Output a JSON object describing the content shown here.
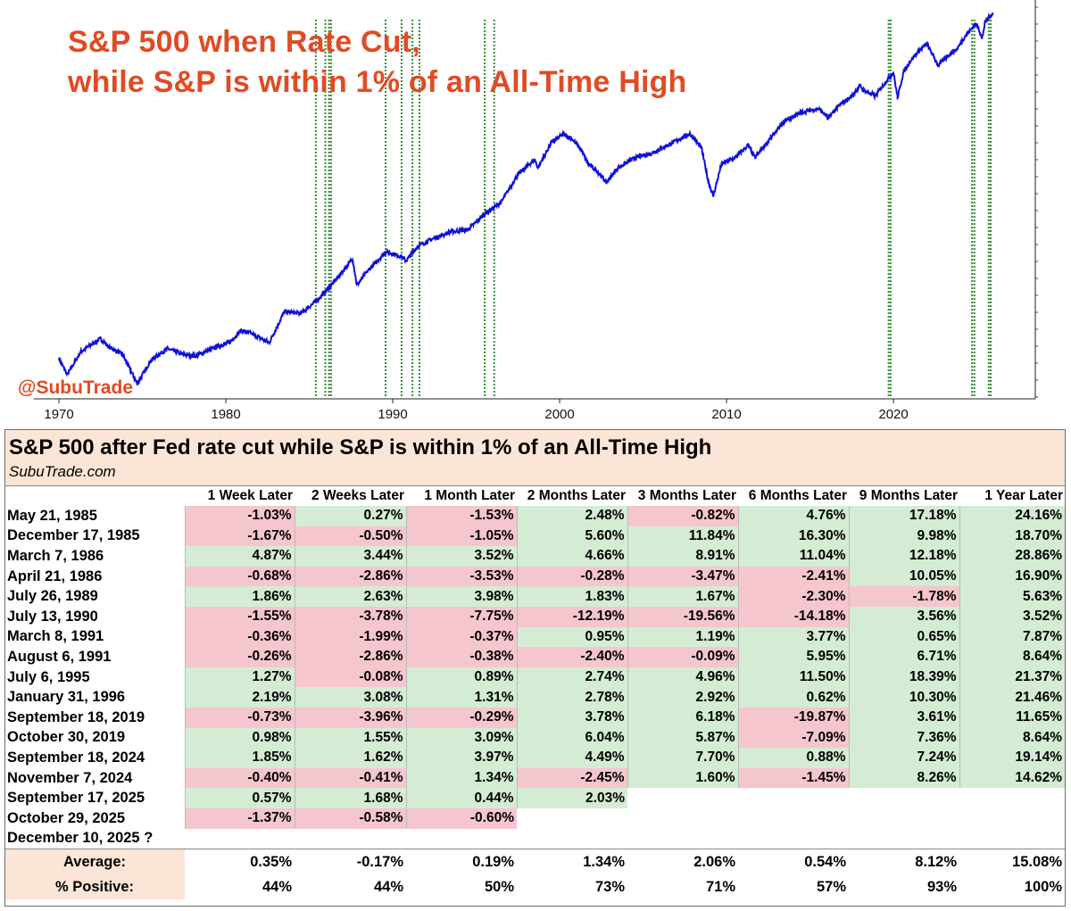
{
  "chart_data": {
    "type": "line",
    "title": [
      "S&P 500 when Rate Cut,",
      "while S&P is within 1% of an All-Time High"
    ],
    "watermark": "@SubuTrade",
    "x_ticks": [
      "1970",
      "1980",
      "1990",
      "2000",
      "2010",
      "2020"
    ],
    "xlim": [
      1968.5,
      2028.5
    ],
    "log_scale": true,
    "grid": false,
    "line_color": "#1010d8",
    "marker_color": "#3a8a3a",
    "series": [
      {
        "x": [
          1970.0,
          1970.5,
          1971.3,
          1972.5,
          1973.0,
          1973.8,
          1974.7,
          1975.5,
          1976.5,
          1977.5,
          1978.2,
          1979.5,
          1980.2,
          1980.9,
          1981.5,
          1982.6,
          1983.5,
          1984.5,
          1985.4,
          1986.5,
          1987.6,
          1987.85,
          1988.5,
          1989.6,
          1990.5,
          1990.8,
          1991.5,
          1992.5,
          1993.5,
          1994.5,
          1995.5,
          1996.5,
          1997.5,
          1998.5,
          1998.7,
          1999.5,
          2000.2,
          2000.7,
          2001.3,
          2001.7,
          2002.3,
          2002.8,
          2003.5,
          2004.5,
          2005.5,
          2006.5,
          2007.8,
          2008.5,
          2008.9,
          2009.2,
          2009.7,
          2010.5,
          2011.3,
          2011.7,
          2012.5,
          2013.5,
          2014.5,
          2015.5,
          2016.1,
          2016.8,
          2017.5,
          2018.0,
          2018.2,
          2018.9,
          2019.5,
          2020.0,
          2020.25,
          2020.6,
          2021.0,
          2021.5,
          2022.0,
          2022.7,
          2023.3,
          2023.8,
          2024.3,
          2024.9,
          2025.1,
          2025.3,
          2025.5,
          2025.8,
          2026.0
        ],
        "y": [
          92,
          75,
          100,
          118,
          106,
          97,
          67,
          90,
          104,
          96,
          95,
          107,
          112,
          130,
          126,
          112,
          165,
          162,
          188,
          240,
          320,
          230,
          275,
          350,
          330,
          312,
          375,
          415,
          450,
          460,
          560,
          650,
          920,
          1110,
          1000,
          1370,
          1520,
          1450,
          1250,
          1050,
          950,
          830,
          1000,
          1130,
          1200,
          1330,
          1530,
          1280,
          850,
          700,
          1050,
          1130,
          1330,
          1130,
          1400,
          1800,
          2000,
          2100,
          1870,
          2200,
          2450,
          2800,
          2650,
          2450,
          2900,
          3300,
          2400,
          3300,
          3800,
          4300,
          4700,
          3600,
          4100,
          4400,
          5200,
          6000,
          5800,
          5000,
          6200,
          6700,
          6900
        ]
      }
    ],
    "cut_dates": [
      1985.39,
      1985.96,
      1986.18,
      1986.3,
      1989.57,
      1990.53,
      1991.18,
      1991.6,
      1995.51,
      1996.08,
      2019.71,
      2019.83,
      2024.71,
      2024.85,
      2025.71,
      2025.83
    ]
  },
  "table": {
    "title": "S&P 500 after Fed rate cut while S&P is within 1% of an All-Time High",
    "site": "SubuTrade.com",
    "headers": [
      "1 Week Later",
      "2 Weeks Later",
      "1 Month Later",
      "2 Months Later",
      "3 Months Later",
      "6 Months Later",
      "9 Months Later",
      "1 Year Later"
    ],
    "rows": [
      {
        "date": "May 21, 1985",
        "values": [
          "-1.03%",
          "0.27%",
          "-1.53%",
          "2.48%",
          "-0.82%",
          "4.76%",
          "17.18%",
          "24.16%"
        ]
      },
      {
        "date": "December 17, 1985",
        "values": [
          "-1.67%",
          "-0.50%",
          "-1.05%",
          "5.60%",
          "11.84%",
          "16.30%",
          "9.98%",
          "18.70%"
        ]
      },
      {
        "date": "March 7, 1986",
        "values": [
          "4.87%",
          "3.44%",
          "3.52%",
          "4.66%",
          "8.91%",
          "11.04%",
          "12.18%",
          "28.86%"
        ]
      },
      {
        "date": "April 21, 1986",
        "values": [
          "-0.68%",
          "-2.86%",
          "-3.53%",
          "-0.28%",
          "-3.47%",
          "-2.41%",
          "10.05%",
          "16.90%"
        ]
      },
      {
        "date": "July 26, 1989",
        "values": [
          "1.86%",
          "2.63%",
          "3.98%",
          "1.83%",
          "1.67%",
          "-2.30%",
          "-1.78%",
          "5.63%"
        ]
      },
      {
        "date": "July 13, 1990",
        "values": [
          "-1.55%",
          "-3.78%",
          "-7.75%",
          "-12.19%",
          "-19.56%",
          "-14.18%",
          "3.56%",
          "3.52%"
        ]
      },
      {
        "date": "March 8, 1991",
        "values": [
          "-0.36%",
          "-1.99%",
          "-0.37%",
          "0.95%",
          "1.19%",
          "3.77%",
          "0.65%",
          "7.87%"
        ]
      },
      {
        "date": "August 6, 1991",
        "values": [
          "-0.26%",
          "-2.86%",
          "-0.38%",
          "-2.40%",
          "-0.09%",
          "5.95%",
          "6.71%",
          "8.64%"
        ]
      },
      {
        "date": "July 6, 1995",
        "values": [
          "1.27%",
          "-0.08%",
          "0.89%",
          "2.74%",
          "4.96%",
          "11.50%",
          "18.39%",
          "21.37%"
        ]
      },
      {
        "date": "January 31, 1996",
        "values": [
          "2.19%",
          "3.08%",
          "1.31%",
          "2.78%",
          "2.92%",
          "0.62%",
          "10.30%",
          "21.46%"
        ]
      },
      {
        "date": "September 18, 2019",
        "values": [
          "-0.73%",
          "-3.96%",
          "-0.29%",
          "3.78%",
          "6.18%",
          "-19.87%",
          "3.61%",
          "11.65%"
        ]
      },
      {
        "date": "October 30, 2019",
        "values": [
          "0.98%",
          "1.55%",
          "3.09%",
          "6.04%",
          "5.87%",
          "-7.09%",
          "7.36%",
          "8.64%"
        ]
      },
      {
        "date": "September 18, 2024",
        "values": [
          "1.85%",
          "1.62%",
          "3.97%",
          "4.49%",
          "7.70%",
          "0.88%",
          "7.24%",
          "19.14%"
        ]
      },
      {
        "date": "November 7, 2024",
        "values": [
          "-0.40%",
          "-0.41%",
          "1.34%",
          "-2.45%",
          "1.60%",
          "-1.45%",
          "8.26%",
          "14.62%"
        ]
      },
      {
        "date": "September 17, 2025",
        "values": [
          "0.57%",
          "1.68%",
          "0.44%",
          "2.03%",
          "",
          "",
          "",
          ""
        ]
      },
      {
        "date": "October 29, 2025",
        "values": [
          "-1.37%",
          "-0.58%",
          "-0.60%",
          "",
          "",
          "",
          "",
          ""
        ]
      },
      {
        "date": "December 10, 2025 ?",
        "values": [
          "",
          "",
          "",
          "",
          "",
          "",
          "",
          ""
        ]
      }
    ],
    "average": {
      "label": "Average:",
      "values": [
        "0.35%",
        "-0.17%",
        "0.19%",
        "1.34%",
        "2.06%",
        "0.54%",
        "8.12%",
        "15.08%"
      ]
    },
    "positive": {
      "label": "% Positive:",
      "values": [
        "44%",
        "44%",
        "50%",
        "73%",
        "71%",
        "57%",
        "93%",
        "100%"
      ]
    }
  }
}
